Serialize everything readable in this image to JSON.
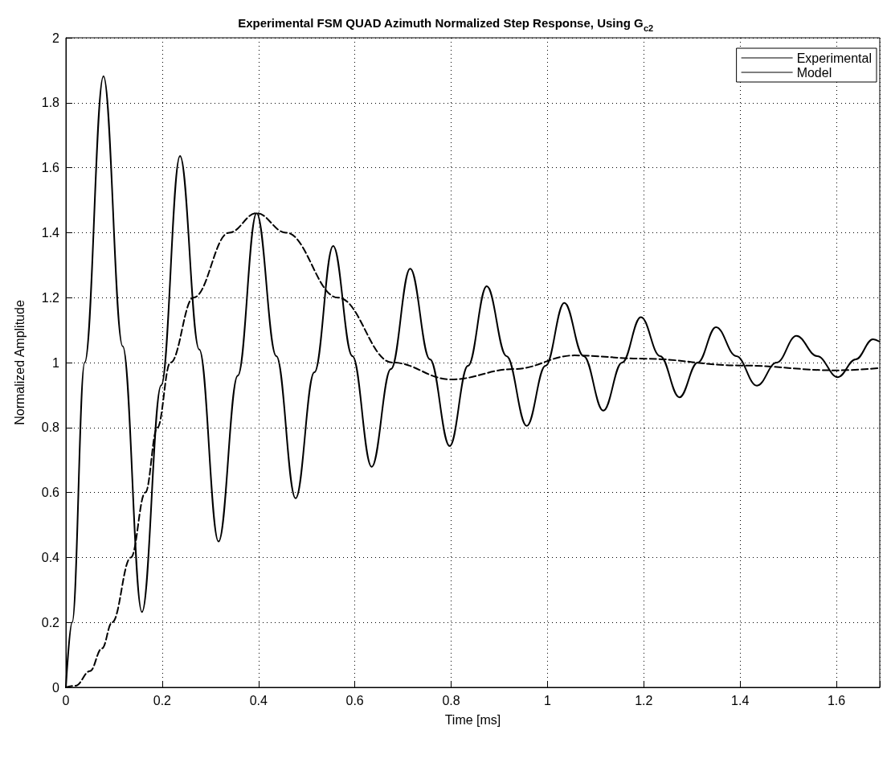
{
  "chart_data": {
    "type": "line",
    "title": "Experimental FSM QUAD Azimuth Normalized Step Response, Using G$_{c2}$",
    "xlabel": "Time [ms]",
    "ylabel": "Normalized Amplitude",
    "xlim": [
      0,
      1.69
    ],
    "xticks": [
      0,
      0.2,
      0.4,
      0.6,
      0.8,
      1,
      1.2,
      1.4,
      1.6
    ],
    "ylim": [
      0,
      2
    ],
    "yticks": [
      0,
      0.2,
      0.4,
      0.6,
      0.8,
      1,
      1.2,
      1.4,
      1.6,
      1.8,
      2
    ],
    "grid": true,
    "legend": "top right",
    "marker": "none",
    "series": [
      {
        "name": "Experimental",
        "color": "#000000",
        "line_style": "solid",
        "x": [
          0,
          0.013,
          0.039,
          0.078,
          0.118,
          0.158,
          0.198,
          0.237,
          0.277,
          0.317,
          0.357,
          0.396,
          0.437,
          0.477,
          0.516,
          0.555,
          0.595,
          0.635,
          0.675,
          0.715,
          0.756,
          0.797,
          0.835,
          0.874,
          0.915,
          0.957,
          0.996,
          1.035,
          1.075,
          1.116,
          1.155,
          1.194,
          1.234,
          1.274,
          1.312,
          1.35,
          1.392,
          1.435,
          1.476,
          1.517,
          1.56,
          1.603,
          1.64,
          1.676,
          1.689
        ],
        "values": [
          0,
          0.2,
          1.0,
          1.882,
          1.05,
          0.232,
          0.93,
          1.636,
          1.04,
          0.449,
          0.96,
          1.46,
          1.02,
          0.582,
          0.97,
          1.359,
          1.02,
          0.679,
          0.98,
          1.289,
          1.01,
          0.743,
          0.99,
          1.235,
          1.02,
          0.805,
          0.99,
          1.184,
          1.02,
          0.852,
          1.0,
          1.14,
          1.02,
          0.893,
          1.0,
          1.109,
          1.02,
          0.929,
          1.0,
          1.082,
          1.02,
          0.955,
          1.01,
          1.072,
          1.065
        ]
      },
      {
        "name": "Model",
        "color": "#000000",
        "line_style": "dashed",
        "x": [
          0,
          0.02,
          0.05,
          0.075,
          0.096,
          0.135,
          0.165,
          0.19,
          0.217,
          0.265,
          0.339,
          0.396,
          0.457,
          0.565,
          0.678,
          0.8,
          0.93,
          1.056,
          1.2,
          1.4,
          1.6,
          1.689
        ],
        "values": [
          0,
          0.005,
          0.05,
          0.12,
          0.2,
          0.4,
          0.6,
          0.8,
          1.0,
          1.2,
          1.4,
          1.46,
          1.4,
          1.2,
          1.0,
          0.948,
          0.98,
          1.022,
          1.012,
          0.991,
          0.976,
          0.983
        ]
      }
    ]
  }
}
